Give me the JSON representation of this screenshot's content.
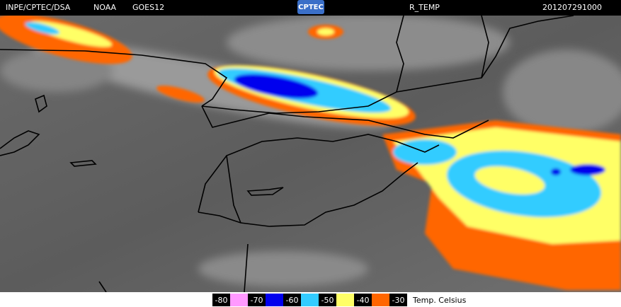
{
  "header": {
    "source": "INPE/CPTEC/DSA",
    "agency": "NOAA",
    "satellite": "GOES12",
    "logo": "CPTEC",
    "product": "R_TEMP",
    "timestamp": "201207291000"
  },
  "legend": {
    "values": [
      -80,
      -70,
      -60,
      -50,
      -40,
      -30
    ],
    "colors": [
      "#ff99ff",
      "#0000ee",
      "#33ccff",
      "#ffff66",
      "#ff6600"
    ],
    "unit": "Temp. Celsius"
  }
}
